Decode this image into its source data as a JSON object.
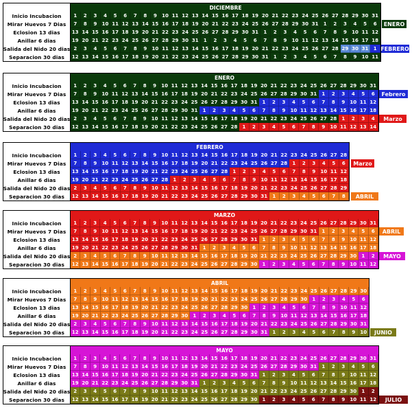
{
  "colors": {
    "diciembre": "#0b3a0b",
    "enero": "#0b3a0b",
    "febrero": "#1f2bd6",
    "marzo": "#e01818",
    "abril": "#f07818",
    "mayo": "#d614d6",
    "junio": "#7a7a18",
    "julio": "#7a1010",
    "highlight": "#5a8ad6"
  },
  "row_labels": [
    "Inicio Incubacion",
    "Mirar Huevos 7 Dias",
    "Eclosion 13 dias",
    "Anillar 6 dias",
    "Salida del Nido 20 dias",
    "Separacion 30 dias"
  ],
  "tables": [
    {
      "name": "diciembre",
      "title": "DICIEMBRE",
      "days": 31,
      "next_month_labels": [
        null,
        "ENERO",
        null,
        null,
        "FEBRERO",
        null
      ],
      "next_colors": [
        null,
        "enero",
        null,
        null,
        "febrero",
        null
      ],
      "next_spans": [
        0,
        6,
        0,
        0,
        3,
        0
      ]
    },
    {
      "name": "enero",
      "title": "ENERO",
      "days": 31,
      "next_month_labels": [
        null,
        "Febrero",
        null,
        null,
        "Marzo",
        null
      ],
      "next_colors": [
        null,
        "febrero",
        null,
        null,
        "marzo",
        null
      ],
      "next_spans": [
        0,
        6,
        0,
        0,
        4,
        0
      ]
    },
    {
      "name": "febrero",
      "title": "FEBRERO",
      "days": 28,
      "next_month_labels": [
        null,
        "Marzo",
        null,
        null,
        null,
        "ABRIL"
      ],
      "next_colors": [
        null,
        "marzo",
        null,
        null,
        null,
        "abril"
      ],
      "next_spans": [
        0,
        6,
        0,
        0,
        0,
        8
      ]
    },
    {
      "name": "marzo",
      "title": "MARZO",
      "days": 31,
      "next_month_labels": [
        null,
        "ABRIL",
        null,
        null,
        "MAYO",
        null
      ],
      "next_colors": [
        null,
        "abril",
        null,
        null,
        "mayo",
        null
      ],
      "next_spans": [
        0,
        6,
        0,
        0,
        2,
        0
      ]
    },
    {
      "name": "abril",
      "title": "ABRIL",
      "days": 30,
      "next_month_labels": [
        null,
        null,
        null,
        null,
        null,
        "JUNIO"
      ],
      "next_colors": [
        null,
        null,
        null,
        null,
        null,
        "junio"
      ],
      "next_spans": [
        0,
        0,
        0,
        0,
        0,
        10
      ]
    },
    {
      "name": "mayo",
      "title": "MAYO",
      "days": 31,
      "next_month_labels": [
        null,
        null,
        null,
        null,
        null,
        "JULIO"
      ],
      "next_colors": [
        null,
        null,
        null,
        null,
        null,
        "julio"
      ],
      "next_spans": [
        0,
        0,
        0,
        0,
        0,
        2
      ]
    }
  ],
  "cells": {
    "diciembre": [
      [
        "1",
        "2",
        "3",
        "4",
        "5",
        "6",
        "7",
        "8",
        "9",
        "10",
        "11",
        "12",
        "13",
        "14",
        "15",
        "16",
        "17",
        "18",
        "19",
        "20",
        "21",
        "22",
        "23",
        "24",
        "25",
        "26",
        "27",
        "28",
        "29",
        "30",
        "31"
      ],
      [
        "7",
        "8",
        "9",
        "10",
        "11",
        "12",
        "13",
        "14",
        "15",
        "16",
        "17",
        "18",
        "19",
        "20",
        "21",
        "22",
        "23",
        "24",
        "25",
        "26",
        "27",
        "28",
        "29",
        "30",
        "31",
        "1",
        "2",
        "3",
        "4",
        "5",
        "6"
      ],
      [
        "13",
        "14",
        "15",
        "16",
        "17",
        "18",
        "19",
        "20",
        "21",
        "22",
        "23",
        "24",
        "25",
        "26",
        "27",
        "28",
        "29",
        "30",
        "31",
        "1",
        "2",
        "3",
        "4",
        "5",
        "6",
        "7",
        "8",
        "9",
        "10",
        "11",
        "12"
      ],
      [
        "19",
        "20",
        "21",
        "22",
        "23",
        "24",
        "25",
        "26",
        "27",
        "28",
        "29",
        "30",
        "31",
        "1",
        "2",
        "3",
        "4",
        "5",
        "6",
        "7",
        "8",
        "9",
        "10",
        "11",
        "12",
        "13",
        "14",
        "15",
        "16",
        "17",
        "18"
      ],
      [
        "2",
        "3",
        "4",
        "5",
        "6",
        "7",
        "8",
        "9",
        "10",
        "11",
        "12",
        "13",
        "14",
        "15",
        "16",
        "17",
        "18",
        "19",
        "20",
        "21",
        "22",
        "23",
        "24",
        "25",
        "26",
        "27",
        "28",
        "29",
        "30",
        "31",
        "1"
      ],
      [
        "12",
        "13",
        "14",
        "15",
        "16",
        "17",
        "18",
        "19",
        "20",
        "21",
        "22",
        "23",
        "24",
        "25",
        "26",
        "27",
        "28",
        "29",
        "30",
        "31",
        "1",
        "2",
        "3",
        "4",
        "5",
        "6",
        "7",
        "8",
        "9",
        "10",
        "11"
      ]
    ],
    "enero": [
      [
        "1",
        "2",
        "3",
        "4",
        "5",
        "6",
        "7",
        "8",
        "9",
        "10",
        "11",
        "12",
        "13",
        "14",
        "15",
        "16",
        "17",
        "18",
        "19",
        "20",
        "21",
        "22",
        "23",
        "24",
        "25",
        "26",
        "27",
        "28",
        "29",
        "30",
        "31"
      ],
      [
        "7",
        "8",
        "9",
        "10",
        "11",
        "12",
        "13",
        "14",
        "15",
        "16",
        "17",
        "18",
        "19",
        "20",
        "21",
        "22",
        "23",
        "24",
        "25",
        "26",
        "27",
        "28",
        "29",
        "30",
        "31",
        "1",
        "2",
        "3",
        "4",
        "5",
        "6"
      ],
      [
        "13",
        "14",
        "15",
        "16",
        "17",
        "18",
        "19",
        "20",
        "21",
        "22",
        "23",
        "24",
        "25",
        "26",
        "27",
        "28",
        "29",
        "30",
        "31",
        "1",
        "2",
        "3",
        "4",
        "5",
        "6",
        "7",
        "8",
        "9",
        "10",
        "11",
        "12"
      ],
      [
        "19",
        "20",
        "21",
        "22",
        "23",
        "24",
        "25",
        "26",
        "27",
        "28",
        "29",
        "30",
        "31",
        "1",
        "2",
        "3",
        "4",
        "5",
        "6",
        "7",
        "8",
        "9",
        "10",
        "11",
        "12",
        "13",
        "14",
        "15",
        "16",
        "17",
        "18"
      ],
      [
        "2",
        "3",
        "4",
        "5",
        "6",
        "7",
        "8",
        "9",
        "10",
        "11",
        "12",
        "13",
        "14",
        "15",
        "16",
        "17",
        "18",
        "19",
        "20",
        "21",
        "22",
        "23",
        "24",
        "25",
        "26",
        "27",
        "28",
        "1",
        "2",
        "3",
        "4"
      ],
      [
        "12",
        "13",
        "14",
        "15",
        "16",
        "17",
        "18",
        "19",
        "20",
        "21",
        "22",
        "23",
        "24",
        "25",
        "26",
        "27",
        "28",
        "1",
        "2",
        "3",
        "4",
        "5",
        "6",
        "7",
        "8",
        "9",
        "10",
        "11",
        "12",
        "13",
        "14"
      ]
    ],
    "febrero": [
      [
        "1",
        "2",
        "3",
        "4",
        "5",
        "6",
        "7",
        "8",
        "9",
        "10",
        "11",
        "12",
        "13",
        "14",
        "15",
        "16",
        "17",
        "18",
        "19",
        "20",
        "21",
        "22",
        "23",
        "24",
        "25",
        "26",
        "27",
        "28"
      ],
      [
        "7",
        "8",
        "9",
        "10",
        "11",
        "12",
        "13",
        "14",
        "15",
        "16",
        "17",
        "18",
        "19",
        "20",
        "21",
        "22",
        "23",
        "24",
        "25",
        "26",
        "27",
        "28",
        "1",
        "2",
        "3",
        "4",
        "5",
        "6"
      ],
      [
        "13",
        "14",
        "15",
        "16",
        "17",
        "18",
        "19",
        "20",
        "21",
        "22",
        "23",
        "24",
        "25",
        "26",
        "27",
        "28",
        "1",
        "2",
        "3",
        "4",
        "5",
        "6",
        "7",
        "8",
        "9",
        "10",
        "11",
        "12"
      ],
      [
        "19",
        "20",
        "21",
        "22",
        "23",
        "24",
        "25",
        "26",
        "27",
        "28",
        "1",
        "2",
        "3",
        "4",
        "5",
        "6",
        "7",
        "8",
        "9",
        "10",
        "11",
        "12",
        "13",
        "14",
        "15",
        "16",
        "17",
        "18"
      ],
      [
        "2",
        "3",
        "4",
        "5",
        "6",
        "7",
        "8",
        "9",
        "10",
        "11",
        "12",
        "13",
        "14",
        "15",
        "16",
        "17",
        "18",
        "19",
        "20",
        "21",
        "22",
        "23",
        "24",
        "25",
        "26",
        "27",
        "28",
        "29"
      ],
      [
        "12",
        "13",
        "14",
        "15",
        "16",
        "17",
        "18",
        "19",
        "20",
        "21",
        "22",
        "23",
        "24",
        "25",
        "26",
        "27",
        "28",
        "29",
        "30",
        "31",
        "1",
        "2",
        "3",
        "4",
        "5",
        "6",
        "7",
        "8"
      ]
    ],
    "marzo": [
      [
        "1",
        "2",
        "3",
        "4",
        "5",
        "6",
        "7",
        "8",
        "9",
        "10",
        "11",
        "12",
        "13",
        "14",
        "15",
        "16",
        "17",
        "18",
        "19",
        "20",
        "21",
        "22",
        "23",
        "24",
        "25",
        "26",
        "27",
        "28",
        "29",
        "30",
        "31"
      ],
      [
        "7",
        "8",
        "9",
        "10",
        "11",
        "12",
        "13",
        "14",
        "15",
        "16",
        "17",
        "18",
        "19",
        "20",
        "21",
        "22",
        "23",
        "24",
        "25",
        "26",
        "27",
        "28",
        "29",
        "30",
        "31",
        "1",
        "2",
        "3",
        "4",
        "5",
        "6"
      ],
      [
        "13",
        "14",
        "15",
        "16",
        "17",
        "18",
        "19",
        "20",
        "21",
        "22",
        "23",
        "24",
        "25",
        "26",
        "27",
        "28",
        "29",
        "30",
        "31",
        "1",
        "2",
        "3",
        "4",
        "5",
        "6",
        "7",
        "8",
        "9",
        "10",
        "11",
        "12"
      ],
      [
        "19",
        "20",
        "21",
        "22",
        "23",
        "24",
        "25",
        "26",
        "27",
        "28",
        "29",
        "30",
        "31",
        "1",
        "2",
        "3",
        "4",
        "5",
        "6",
        "7",
        "8",
        "9",
        "10",
        "11",
        "12",
        "13",
        "14",
        "15",
        "16",
        "17",
        "18"
      ],
      [
        "2",
        "3",
        "4",
        "5",
        "6",
        "7",
        "8",
        "9",
        "10",
        "11",
        "12",
        "13",
        "14",
        "15",
        "16",
        "17",
        "18",
        "19",
        "20",
        "21",
        "22",
        "23",
        "24",
        "25",
        "26",
        "27",
        "28",
        "29",
        "30",
        "1",
        "2"
      ],
      [
        "12",
        "13",
        "14",
        "15",
        "16",
        "17",
        "18",
        "19",
        "20",
        "21",
        "22",
        "23",
        "24",
        "25",
        "26",
        "27",
        "28",
        "29",
        "30",
        "1",
        "2",
        "3",
        "4",
        "5",
        "6",
        "7",
        "8",
        "9",
        "10",
        "11",
        "12"
      ]
    ],
    "abril": [
      [
        "1",
        "2",
        "3",
        "4",
        "5",
        "6",
        "7",
        "8",
        "9",
        "10",
        "11",
        "12",
        "13",
        "14",
        "15",
        "16",
        "17",
        "18",
        "19",
        "20",
        "21",
        "22",
        "23",
        "24",
        "25",
        "26",
        "27",
        "28",
        "29",
        "30"
      ],
      [
        "7",
        "8",
        "9",
        "10",
        "11",
        "12",
        "13",
        "14",
        "15",
        "16",
        "17",
        "18",
        "19",
        "20",
        "21",
        "22",
        "23",
        "24",
        "25",
        "26",
        "27",
        "28",
        "29",
        "30",
        "1",
        "2",
        "3",
        "4",
        "5",
        "6"
      ],
      [
        "13",
        "14",
        "15",
        "16",
        "17",
        "18",
        "19",
        "20",
        "21",
        "22",
        "23",
        "24",
        "25",
        "26",
        "27",
        "28",
        "29",
        "30",
        "1",
        "2",
        "3",
        "4",
        "5",
        "6",
        "7",
        "8",
        "9",
        "10",
        "11",
        "12"
      ],
      [
        "19",
        "20",
        "21",
        "22",
        "23",
        "24",
        "25",
        "26",
        "27",
        "28",
        "29",
        "30",
        "1",
        "2",
        "3",
        "4",
        "5",
        "6",
        "7",
        "8",
        "9",
        "10",
        "11",
        "12",
        "13",
        "14",
        "15",
        "16",
        "17",
        "18"
      ],
      [
        "2",
        "3",
        "4",
        "5",
        "6",
        "7",
        "8",
        "9",
        "10",
        "11",
        "12",
        "13",
        "14",
        "15",
        "16",
        "17",
        "18",
        "19",
        "20",
        "21",
        "22",
        "23",
        "24",
        "25",
        "26",
        "27",
        "28",
        "29",
        "30",
        "31"
      ],
      [
        "12",
        "13",
        "14",
        "15",
        "16",
        "17",
        "18",
        "19",
        "20",
        "21",
        "22",
        "23",
        "24",
        "25",
        "26",
        "27",
        "28",
        "29",
        "30",
        "31",
        "1",
        "2",
        "3",
        "4",
        "5",
        "6",
        "7",
        "8",
        "9",
        "10"
      ]
    ],
    "mayo": [
      [
        "1",
        "2",
        "3",
        "4",
        "5",
        "6",
        "7",
        "8",
        "9",
        "10",
        "11",
        "12",
        "13",
        "14",
        "15",
        "16",
        "17",
        "18",
        "19",
        "20",
        "21",
        "22",
        "23",
        "24",
        "25",
        "26",
        "27",
        "28",
        "29",
        "30",
        "31"
      ],
      [
        "7",
        "8",
        "9",
        "10",
        "11",
        "12",
        "13",
        "14",
        "15",
        "16",
        "17",
        "18",
        "19",
        "20",
        "21",
        "22",
        "23",
        "24",
        "25",
        "26",
        "27",
        "28",
        "29",
        "30",
        "31",
        "1",
        "2",
        "3",
        "4",
        "5",
        "6"
      ],
      [
        "13",
        "14",
        "15",
        "16",
        "17",
        "18",
        "19",
        "20",
        "21",
        "22",
        "23",
        "24",
        "25",
        "26",
        "27",
        "28",
        "29",
        "30",
        "31",
        "1",
        "2",
        "3",
        "4",
        "5",
        "6",
        "7",
        "8",
        "9",
        "10",
        "11",
        "12"
      ],
      [
        "19",
        "20",
        "21",
        "22",
        "23",
        "24",
        "25",
        "26",
        "27",
        "28",
        "29",
        "30",
        "31",
        "1",
        "2",
        "3",
        "4",
        "5",
        "6",
        "7",
        "8",
        "9",
        "10",
        "11",
        "12",
        "13",
        "14",
        "15",
        "16",
        "17",
        "18"
      ],
      [
        "2",
        "3",
        "4",
        "5",
        "6",
        "7",
        "8",
        "9",
        "10",
        "11",
        "12",
        "13",
        "14",
        "15",
        "16",
        "17",
        "18",
        "19",
        "20",
        "21",
        "22",
        "23",
        "24",
        "25",
        "26",
        "27",
        "28",
        "29",
        "30",
        "1",
        "2"
      ],
      [
        "12",
        "13",
        "14",
        "15",
        "16",
        "17",
        "18",
        "19",
        "20",
        "21",
        "22",
        "23",
        "24",
        "25",
        "26",
        "27",
        "28",
        "29",
        "30",
        "1",
        "2",
        "3",
        "4",
        "5",
        "6",
        "7",
        "8",
        "9",
        "10",
        "11",
        "12"
      ]
    ]
  },
  "cell_colors": {
    "diciembre": [
      "diciembre:31",
      "diciembre:25|enero:6",
      "diciembre:19|enero:12",
      "diciembre:13|enero:18",
      "diciembre:26|enero:1|highlight:3|febrero:1",
      "diciembre:20|enero:11"
    ],
    "enero": [
      "enero:31",
      "enero:25|febrero:6",
      "enero:19|febrero:12",
      "enero:13|febrero:18",
      "enero:27|marzo:4",
      "enero:17|marzo:14"
    ],
    "febrero": [
      "febrero:28",
      "febrero:22|marzo:6",
      "febrero:16|marzo:12",
      "febrero:10|marzo:18",
      "marzo:28",
      "marzo:20|abril:8"
    ],
    "marzo": [
      "marzo:31",
      "marzo:25|abril:6",
      "marzo:19|abril:12",
      "marzo:13|abril:18",
      "abril:29|mayo:2",
      "abril:19|mayo:12"
    ],
    "abril": [
      "abril:30",
      "abril:24|mayo:6",
      "abril:18|mayo:12",
      "abril:12|mayo:18",
      "mayo:30",
      "mayo:20|junio:10"
    ],
    "mayo": [
      "mayo:31",
      "mayo:25|junio:6",
      "mayo:19|junio:12",
      "mayo:13|junio:18",
      "junio:29|julio:2",
      "junio:19|julio:12"
    ]
  }
}
